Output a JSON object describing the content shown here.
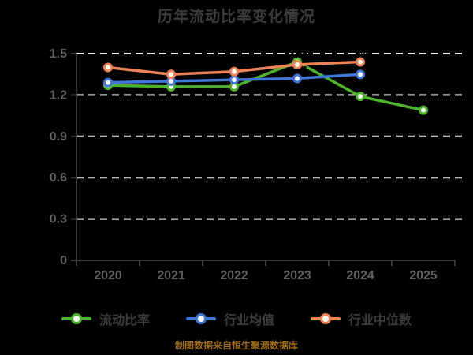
{
  "title": "历年流动比率变化情况",
  "footer": "制图数据来自恒生聚源数据库",
  "colors": {
    "background": "#000000",
    "title_text": "#3c3c3c",
    "axis": "#3a3a3a",
    "tick_label": "#606060",
    "gridline": "#ececec",
    "data_label": "#000000",
    "marker_fill": "#ffffff",
    "footer_text": "#a06e14"
  },
  "chart_data": {
    "type": "line",
    "title": "历年流动比率变化情况",
    "x": [
      "2020",
      "2021",
      "2022",
      "2023",
      "2024",
      "2025"
    ],
    "xlabel": "",
    "ylabel": "",
    "ylim": [
      0,
      1.5
    ],
    "y_ticks": [
      0,
      0.3,
      0.6,
      0.9,
      1.2,
      1.5
    ],
    "y_tick_labels": [
      "0",
      "0.3",
      "0.6",
      "0.9",
      "1.2",
      "1.5"
    ],
    "grid": "horizontal-dashed-white",
    "legend_position": "bottom",
    "marker": "circle-white-fill",
    "series": [
      {
        "name": "流动比率",
        "color": "#4db52a",
        "values": [
          1.27,
          1.26,
          1.26,
          1.44,
          1.19,
          1.09
        ]
      },
      {
        "name": "行业均值",
        "color": "#4076d8",
        "values": [
          1.29,
          1.3,
          1.31,
          1.32,
          1.35,
          null
        ]
      },
      {
        "name": "行业中位数",
        "color": "#ef8356",
        "values": [
          1.4,
          1.35,
          1.37,
          1.42,
          1.44,
          null
        ]
      }
    ]
  }
}
